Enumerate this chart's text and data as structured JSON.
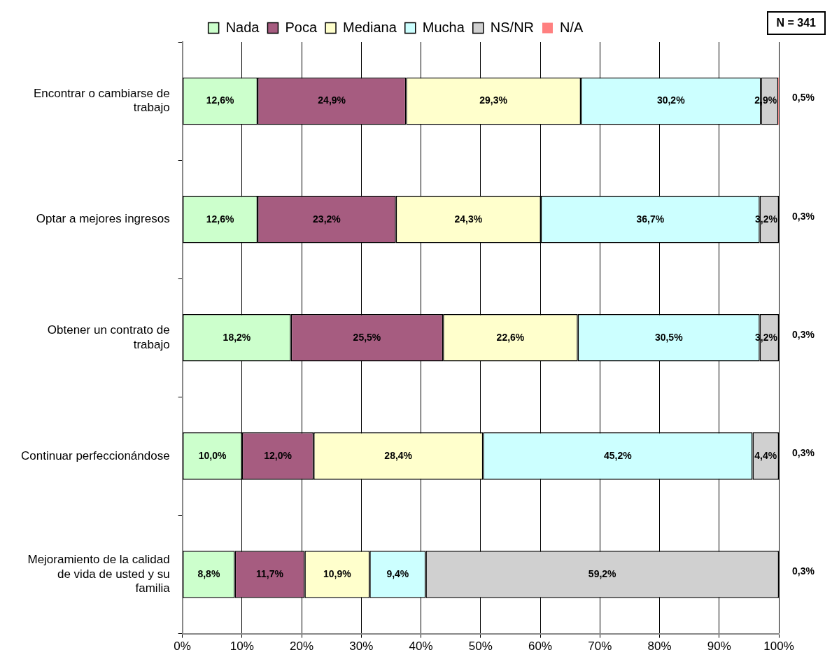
{
  "chart_data": {
    "type": "bar",
    "orientation": "horizontal",
    "stacked": true,
    "grid": "x",
    "legend": "top",
    "categories": [
      "Encontrar o cambiarse de trabajo",
      "Optar a mejores ingresos",
      "Obtener un contrato de trabajo",
      "Continuar perfeccionándose",
      "Mejoramiento de la calidad de vida de usted y su familia"
    ],
    "series": [
      {
        "name": "Nada",
        "color": "#ccffcc",
        "values": [
          12.6,
          12.6,
          18.2,
          10.0,
          8.8
        ],
        "value_labels": [
          "12,6%",
          "12,6%",
          "18,2%",
          "10,0%",
          "8,8%"
        ]
      },
      {
        "name": "Poca",
        "color": "#a65c80",
        "values": [
          24.9,
          23.2,
          25.5,
          12.0,
          11.7
        ],
        "value_labels": [
          "24,9%",
          "23,2%",
          "25,5%",
          "12,0%",
          "11,7%"
        ]
      },
      {
        "name": "Mediana",
        "color": "#ffffcc",
        "values": [
          29.3,
          24.3,
          22.6,
          28.4,
          10.9
        ],
        "value_labels": [
          "29,3%",
          "24,3%",
          "22,6%",
          "28,4%",
          "10,9%"
        ]
      },
      {
        "name": "Mucha",
        "color": "#ccffff",
        "values": [
          30.2,
          36.7,
          30.5,
          45.2,
          9.4
        ],
        "value_labels": [
          "30,2%",
          "36,7%",
          "30,5%",
          "45,2%",
          "9,4%"
        ]
      },
      {
        "name": "NS/NR",
        "color": "#d0d0d0",
        "values": [
          2.9,
          3.2,
          3.2,
          4.4,
          59.2
        ],
        "value_labels": [
          "2,9%",
          "3,2%",
          "3,2%",
          "4,4%",
          "59,2%"
        ]
      },
      {
        "name": "N/A",
        "color": "#ff8080",
        "values": [
          0.5,
          0.3,
          0.3,
          0.3,
          0.3
        ],
        "value_labels": [
          "0,5%",
          "0,3%",
          "0,3%",
          "0,3%",
          "0,3%"
        ]
      }
    ],
    "xlim": [
      0,
      100
    ],
    "xticks": [
      {
        "value": 0,
        "label": "0%"
      },
      {
        "value": 10,
        "label": "10%"
      },
      {
        "value": 20,
        "label": "20%"
      },
      {
        "value": 30,
        "label": "30%"
      },
      {
        "value": 40,
        "label": "40%"
      },
      {
        "value": 50,
        "label": "50%"
      },
      {
        "value": 60,
        "label": "60%"
      },
      {
        "value": 70,
        "label": "70%"
      },
      {
        "value": 80,
        "label": "80%"
      },
      {
        "value": 90,
        "label": "90%"
      },
      {
        "value": 100,
        "label": "100%"
      }
    ],
    "annotations": [
      "N = 341"
    ]
  }
}
